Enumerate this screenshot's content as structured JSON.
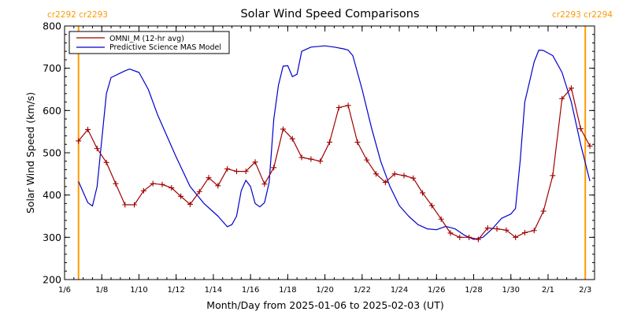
{
  "chart_data": {
    "type": "line",
    "title": "Solar Wind Speed Comparisons",
    "xlabel": "Month/Day from 2025-01-06 to 2025-02-03 (UT)",
    "ylabel": "Solar Wind Speed (km/s)",
    "xlim": [
      "2025-01-06T00:00",
      "2025-02-03T12:00"
    ],
    "ylim": [
      200,
      800
    ],
    "x_tick_labels": [
      {
        "date": "2025-01-06",
        "label": "1/6"
      },
      {
        "date": "2025-01-08",
        "label": "1/8"
      },
      {
        "date": "2025-01-10",
        "label": "1/10"
      },
      {
        "date": "2025-01-12",
        "label": "1/12"
      },
      {
        "date": "2025-01-14",
        "label": "1/14"
      },
      {
        "date": "2025-01-16",
        "label": "1/16"
      },
      {
        "date": "2025-01-18",
        "label": "1/18"
      },
      {
        "date": "2025-01-20",
        "label": "1/20"
      },
      {
        "date": "2025-01-22",
        "label": "1/22"
      },
      {
        "date": "2025-01-24",
        "label": "1/24"
      },
      {
        "date": "2025-01-26",
        "label": "1/26"
      },
      {
        "date": "2025-01-28",
        "label": "1/28"
      },
      {
        "date": "2025-01-30",
        "label": "1/30"
      },
      {
        "date": "2025-02-01",
        "label": "2/1"
      },
      {
        "date": "2025-02-03",
        "label": "2/3"
      }
    ],
    "y_ticks": [
      200,
      300,
      400,
      500,
      600,
      700,
      800
    ],
    "legend_position": "top-left",
    "carrington_markers": [
      {
        "date": "2025-01-06T18:00",
        "label": "cr2292 cr2293"
      },
      {
        "date": "2025-02-03T00:00",
        "label": "cr2293 cr2294"
      }
    ],
    "series": [
      {
        "name": "OMNI_M (12-hr avg)",
        "color": "#a00000",
        "markers": true,
        "points": [
          [
            "2025-01-06T18:00",
            528
          ],
          [
            "2025-01-07T06:00",
            555
          ],
          [
            "2025-01-07T18:00",
            510
          ],
          [
            "2025-01-08T06:00",
            477
          ],
          [
            "2025-01-08T18:00",
            427
          ],
          [
            "2025-01-09T06:00",
            377
          ],
          [
            "2025-01-09T18:00",
            377
          ],
          [
            "2025-01-10T06:00",
            410
          ],
          [
            "2025-01-10T18:00",
            427
          ],
          [
            "2025-01-11T06:00",
            425
          ],
          [
            "2025-01-11T18:00",
            417
          ],
          [
            "2025-01-12T06:00",
            397
          ],
          [
            "2025-01-12T18:00",
            378
          ],
          [
            "2025-01-13T06:00",
            408
          ],
          [
            "2025-01-13T18:00",
            441
          ],
          [
            "2025-01-14T06:00",
            422
          ],
          [
            "2025-01-14T18:00",
            462
          ],
          [
            "2025-01-15T06:00",
            456
          ],
          [
            "2025-01-15T18:00",
            456
          ],
          [
            "2025-01-16T06:00",
            478
          ],
          [
            "2025-01-16T18:00",
            426
          ],
          [
            "2025-01-17T06:00",
            465
          ],
          [
            "2025-01-17T18:00",
            556
          ],
          [
            "2025-01-18T06:00",
            533
          ],
          [
            "2025-01-18T18:00",
            489
          ],
          [
            "2025-01-19T06:00",
            485
          ],
          [
            "2025-01-19T18:00",
            480
          ],
          [
            "2025-01-20T06:00",
            525
          ],
          [
            "2025-01-20T18:00",
            607
          ],
          [
            "2025-01-21T06:00",
            612
          ],
          [
            "2025-01-21T18:00",
            525
          ],
          [
            "2025-01-22T06:00",
            483
          ],
          [
            "2025-01-22T18:00",
            450
          ],
          [
            "2025-01-23T06:00",
            430
          ],
          [
            "2025-01-23T18:00",
            450
          ],
          [
            "2025-01-24T06:00",
            446
          ],
          [
            "2025-01-24T18:00",
            440
          ],
          [
            "2025-01-25T06:00",
            405
          ],
          [
            "2025-01-25T18:00",
            375
          ],
          [
            "2025-01-26T06:00",
            343
          ],
          [
            "2025-01-26T18:00",
            310
          ],
          [
            "2025-01-27T06:00",
            300
          ],
          [
            "2025-01-27T18:00",
            300
          ],
          [
            "2025-01-28T06:00",
            295
          ],
          [
            "2025-01-28T18:00",
            322
          ],
          [
            "2025-01-29T06:00",
            320
          ],
          [
            "2025-01-29T18:00",
            317
          ],
          [
            "2025-01-30T06:00",
            300
          ],
          [
            "2025-01-30T18:00",
            311
          ],
          [
            "2025-01-31T06:00",
            316
          ],
          [
            "2025-01-31T18:00",
            362
          ],
          [
            "2025-02-01T06:00",
            446
          ],
          [
            "2025-02-01T18:00",
            628
          ],
          [
            "2025-02-02T06:00",
            653
          ],
          [
            "2025-02-02T18:00",
            557
          ],
          [
            "2025-02-03T06:00",
            516
          ]
        ]
      },
      {
        "name": "Predictive Science MAS Model",
        "color": "#0000cc",
        "markers": false,
        "points": [
          [
            "2025-01-06T18:00",
            432
          ],
          [
            "2025-01-07T06:00",
            382
          ],
          [
            "2025-01-07T12:00",
            374
          ],
          [
            "2025-01-07T18:00",
            420
          ],
          [
            "2025-01-08T06:00",
            640
          ],
          [
            "2025-01-08T12:00",
            678
          ],
          [
            "2025-01-09T06:00",
            694
          ],
          [
            "2025-01-09T12:00",
            698
          ],
          [
            "2025-01-10T00:00",
            690
          ],
          [
            "2025-01-10T12:00",
            650
          ],
          [
            "2025-01-11T00:00",
            590
          ],
          [
            "2025-01-12T00:00",
            490
          ],
          [
            "2025-01-12T18:00",
            420
          ],
          [
            "2025-01-13T12:00",
            380
          ],
          [
            "2025-01-14T06:00",
            350
          ],
          [
            "2025-01-14T18:00",
            325
          ],
          [
            "2025-01-15T00:00",
            330
          ],
          [
            "2025-01-15T06:00",
            350
          ],
          [
            "2025-01-15T12:00",
            410
          ],
          [
            "2025-01-15T18:00",
            435
          ],
          [
            "2025-01-16T00:00",
            420
          ],
          [
            "2025-01-16T06:00",
            380
          ],
          [
            "2025-01-16T12:00",
            372
          ],
          [
            "2025-01-16T18:00",
            382
          ],
          [
            "2025-01-17T00:00",
            430
          ],
          [
            "2025-01-17T06:00",
            580
          ],
          [
            "2025-01-17T12:00",
            660
          ],
          [
            "2025-01-17T18:00",
            705
          ],
          [
            "2025-01-18T00:00",
            706
          ],
          [
            "2025-01-18T06:00",
            680
          ],
          [
            "2025-01-18T12:00",
            686
          ],
          [
            "2025-01-18T18:00",
            740
          ],
          [
            "2025-01-19T06:00",
            750
          ],
          [
            "2025-01-20T00:00",
            753
          ],
          [
            "2025-01-20T12:00",
            750
          ],
          [
            "2025-01-21T00:00",
            746
          ],
          [
            "2025-01-21T06:00",
            743
          ],
          [
            "2025-01-21T12:00",
            730
          ],
          [
            "2025-01-22T00:00",
            650
          ],
          [
            "2025-01-22T12:00",
            560
          ],
          [
            "2025-01-23T00:00",
            480
          ],
          [
            "2025-01-23T12:00",
            420
          ],
          [
            "2025-01-24T00:00",
            375
          ],
          [
            "2025-01-24T12:00",
            350
          ],
          [
            "2025-01-25T00:00",
            330
          ],
          [
            "2025-01-25T12:00",
            320
          ],
          [
            "2025-01-26T00:00",
            318
          ],
          [
            "2025-01-26T12:00",
            326
          ],
          [
            "2025-01-27T00:00",
            320
          ],
          [
            "2025-01-27T12:00",
            305
          ],
          [
            "2025-01-28T00:00",
            295
          ],
          [
            "2025-01-28T12:00",
            300
          ],
          [
            "2025-01-29T00:00",
            320
          ],
          [
            "2025-01-29T12:00",
            345
          ],
          [
            "2025-01-30T00:00",
            355
          ],
          [
            "2025-01-30T06:00",
            368
          ],
          [
            "2025-01-30T12:00",
            480
          ],
          [
            "2025-01-30T18:00",
            620
          ],
          [
            "2025-01-31T06:00",
            715
          ],
          [
            "2025-01-31T12:00",
            743
          ],
          [
            "2025-01-31T18:00",
            742
          ],
          [
            "2025-02-01T06:00",
            730
          ],
          [
            "2025-02-01T18:00",
            690
          ],
          [
            "2025-02-02T06:00",
            620
          ],
          [
            "2025-02-02T18:00",
            520
          ],
          [
            "2025-02-03T06:00",
            433
          ]
        ]
      }
    ]
  }
}
